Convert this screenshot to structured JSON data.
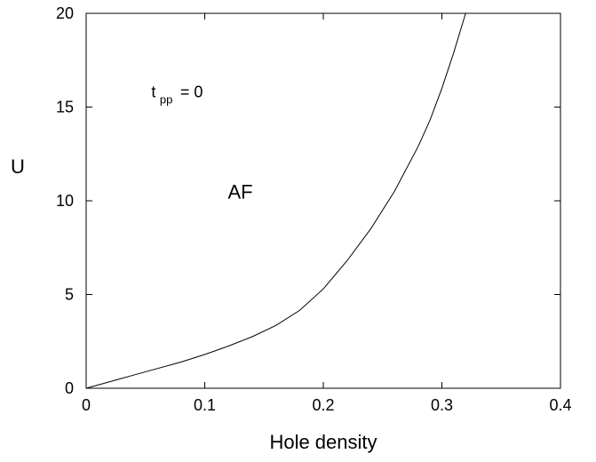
{
  "chart_data": {
    "type": "line",
    "xlabel": "Hole density",
    "ylabel": "U",
    "xlim": [
      0,
      0.4
    ],
    "ylim": [
      0,
      20
    ],
    "x_ticks": [
      "0",
      "0.1",
      "0.2",
      "0.3",
      "0.4"
    ],
    "y_ticks": [
      "0",
      "5",
      "10",
      "15",
      "20"
    ],
    "grid": false,
    "series": [
      {
        "color": "#000000",
        "points": [
          [
            0.0,
            0.0
          ],
          [
            0.02,
            0.35
          ],
          [
            0.04,
            0.7
          ],
          [
            0.06,
            1.05
          ],
          [
            0.08,
            1.4
          ],
          [
            0.1,
            1.8
          ],
          [
            0.12,
            2.25
          ],
          [
            0.14,
            2.75
          ],
          [
            0.16,
            3.35
          ],
          [
            0.18,
            4.15
          ],
          [
            0.2,
            5.3
          ],
          [
            0.22,
            6.8
          ],
          [
            0.24,
            8.5
          ],
          [
            0.26,
            10.5
          ],
          [
            0.28,
            12.9
          ],
          [
            0.29,
            14.3
          ],
          [
            0.3,
            16.0
          ],
          [
            0.31,
            17.9
          ],
          [
            0.32,
            20.0
          ]
        ]
      }
    ],
    "annotations": [
      {
        "text": "AF",
        "x": 0.13,
        "y": 10.5
      },
      {
        "text_main": "t",
        "text_sub": "pp",
        "text_after": " = 0",
        "x": 0.055,
        "y": 15.8
      }
    ]
  }
}
